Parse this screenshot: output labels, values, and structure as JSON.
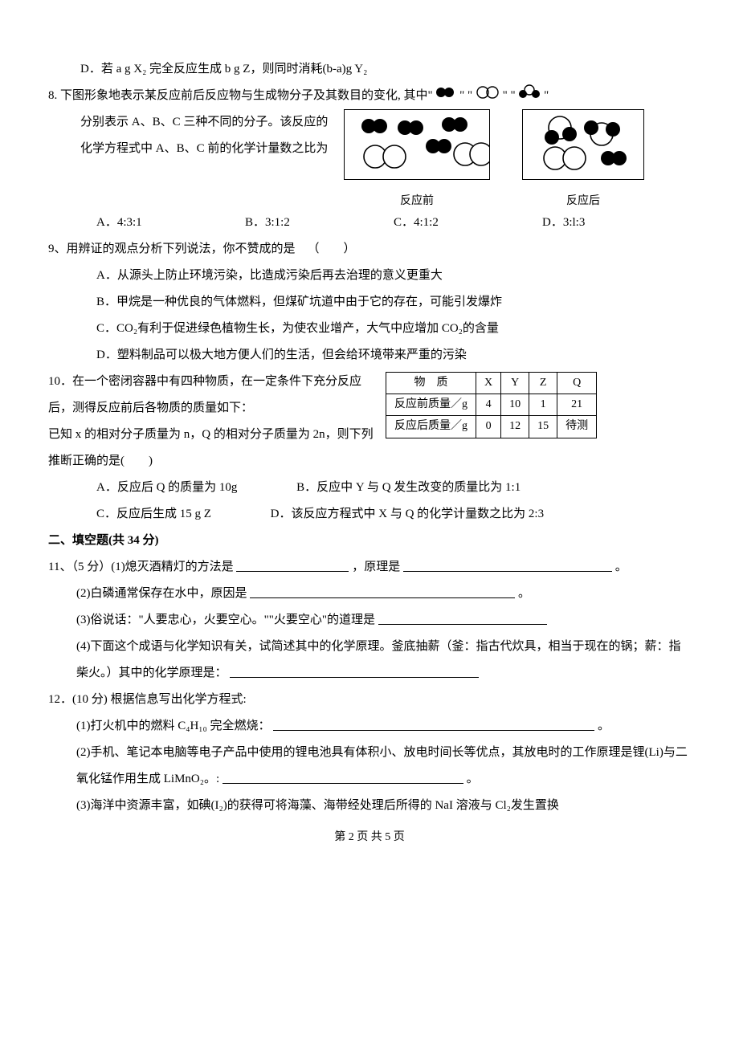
{
  "q7_D": "D．若 a g X₂ 完全反应生成 b g Z，则同时消耗(b-a)g Y₂",
  "q8": {
    "stem_start": "8. 下图形象地表示某反应前后反应物与生成物分子及其数目的变化, 其中\"",
    "icon_sep1": "\" \"",
    "icon_sep2": "\" \"",
    "stem_cont": "分别表示 A、B、C 三种不同的分子。该反应的化学方程式中 A、B、C 前的化学计量数之比为",
    "cap_before": "反应前",
    "cap_after": "反应后",
    "opts": [
      "A．4:3:1",
      "B．3:1:2",
      "C．4:1:2",
      "D．3:l:3"
    ]
  },
  "q9": {
    "stem": "9、用辨证的观点分析下列说法，你不赞成的是 （  ）",
    "A": "A．从源头上防止环境污染，比造成污染后再去治理的意义更重大",
    "B": "B．甲烷是一种优良的气体燃料，但煤矿坑道中由于它的存在，可能引发爆炸",
    "C": "C．CO₂有利于促进绿色植物生长，为使农业增产，大气中应增加 CO₂的含量",
    "D": "D．塑料制品可以极大地方便人们的生活，但会给环境带来严重的污染"
  },
  "q10": {
    "stem_a": "10．在一个密闭容器中有四种物质，在一定条件下充分反应后，测得反应前后各物质的质量如下：",
    "stem_b": "已知 x 的相对分子质量为 n，Q 的相对分子质量为 2n，则下列推断正确的是(  )",
    "table": {
      "header": [
        "物　质",
        "X",
        "Y",
        "Z",
        "Q"
      ],
      "row1": [
        "反应前质量／g",
        "4",
        "10",
        "1",
        "21"
      ],
      "row2": [
        "反应后质量／g",
        "0",
        "12",
        "15",
        "待测"
      ]
    },
    "A": "A．反应后 Q 的质量为 10g",
    "B": "B．反应中 Y 与 Q 发生改变的质量比为 1:1",
    "C": "C．反应后生成 15 g Z",
    "D": "D．该反应方程式中 X 与 Q 的化学计量数之比为 2:3"
  },
  "section2": "二、填空题(共 34 分)",
  "q11": {
    "l1a": "11、（5 分）(1)熄灭酒精灯的方法是",
    "l1b": "，原理是",
    "l1c": "。",
    "l2a": "(2)白磷通常保存在水中，原因是",
    "l2b": "。",
    "l3a": "(3)俗说话：\"人要忠心，火要空心。\"\"火要空心\"的道理是",
    "l4a": "(4)下面这个成语与化学知识有关，试简述其中的化学原理。釜底抽薪（釜：指古代炊具，相当于现在的锅；薪：指柴火。）其中的化学原理是：",
    "blank_w1": 140,
    "blank_w1b": 260,
    "blank_w2": 330,
    "blank_w3": 210,
    "blank_w4": 310
  },
  "q12": {
    "head": "12．(10 分) 根据信息写出化学方程式:",
    "l1a": "(1)打火机中的燃料 C₄H₁₀ 完全燃烧：",
    "l1end": "。",
    "l2": "(2)手机、笔记本电脑等电子产品中使用的锂电池具有体积小、放电时间长等优点，其放电时的工作原理是锂(Li)与二氧化锰作用生成 LiMnO₂。:",
    "l2end": "。",
    "l3": "(3)海洋中资源丰富，如碘(I₂)的获得可将海藻、海带经处理后所得的 NaI 溶液与 Cl₂发生置换",
    "blank_w1": 400,
    "blank_w2": 300
  },
  "footer": "第 2 页 共 5 页",
  "colors": {
    "text": "#000",
    "bg": "#fff",
    "border": "#000"
  }
}
